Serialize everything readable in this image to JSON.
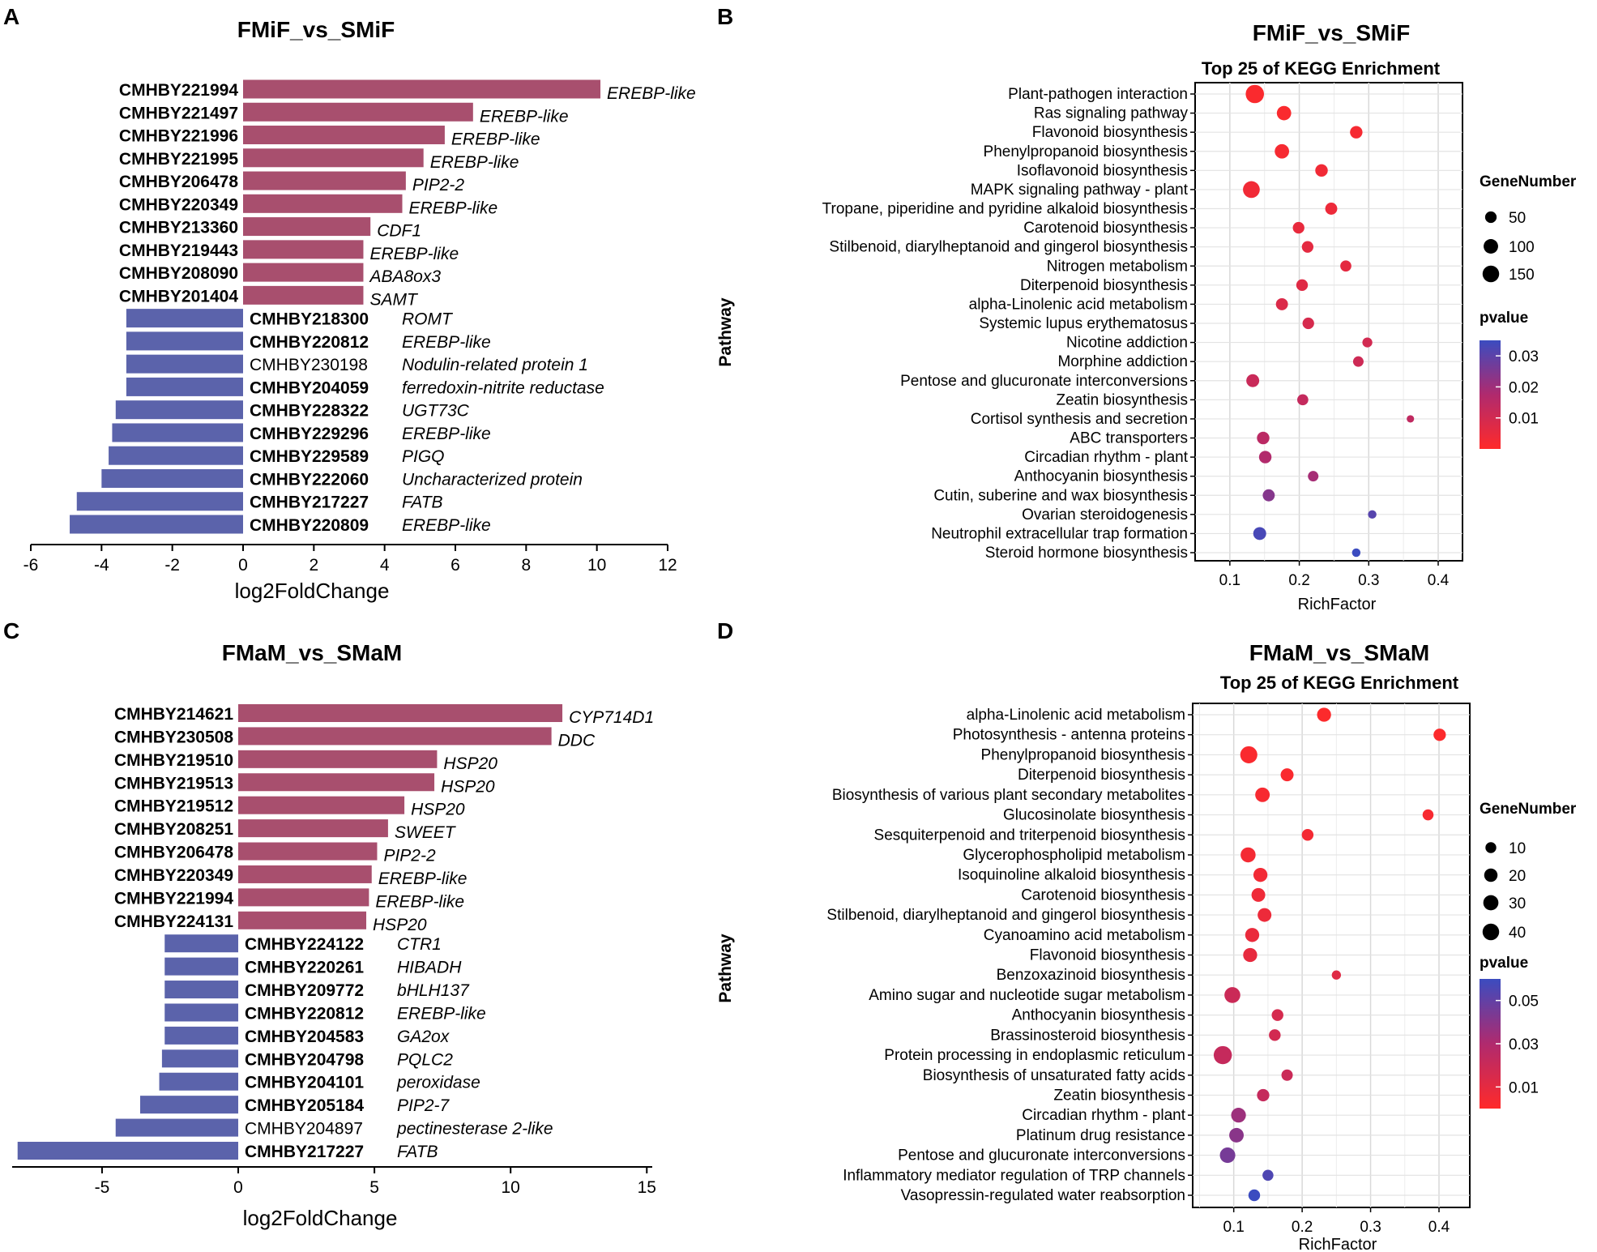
{
  "panels": [
    {
      "letter": "A",
      "title": "FMiF_vs_SMiF",
      "chart_data": {
        "type": "bar",
        "orientation": "horizontal",
        "title": "FMiF_vs_SMiF",
        "xlabel": "log2FoldChange",
        "xlim": [
          -6,
          12
        ],
        "xticks": [
          -6,
          -4,
          -2,
          0,
          2,
          4,
          6,
          8,
          10,
          12
        ],
        "colors": {
          "up": "#a84f6e",
          "down": "#5b63ab"
        },
        "bars": [
          {
            "gene": "CMHBY221994",
            "annotation": "EREBP-like",
            "value": 10.1
          },
          {
            "gene": "CMHBY221497",
            "annotation": "EREBP-like",
            "value": 6.5
          },
          {
            "gene": "CMHBY221996",
            "annotation": "EREBP-like",
            "value": 5.7
          },
          {
            "gene": "CMHBY221995",
            "annotation": "EREBP-like",
            "value": 5.1
          },
          {
            "gene": "CMHBY206478",
            "annotation": "PIP2-2",
            "value": 4.6
          },
          {
            "gene": "CMHBY220349",
            "annotation": "EREBP-like",
            "value": 4.5
          },
          {
            "gene": "CMHBY213360",
            "annotation": "CDF1",
            "value": 3.6
          },
          {
            "gene": "CMHBY219443",
            "annotation": "EREBP-like",
            "value": 3.4
          },
          {
            "gene": "CMHBY208090",
            "annotation": "ABA8ox3",
            "value": 3.4
          },
          {
            "gene": "CMHBY201404",
            "annotation": "SAMT",
            "value": 3.4
          },
          {
            "gene": "CMHBY218300",
            "annotation": "ROMT",
            "value": -3.3
          },
          {
            "gene": "CMHBY220812",
            "annotation": "EREBP-like",
            "value": -3.3
          },
          {
            "gene": "CMHBY230198",
            "annotation": "Nodulin-related protein 1",
            "value": -3.3,
            "plain": true
          },
          {
            "gene": "CMHBY204059",
            "annotation": "ferredoxin-nitrite reductase",
            "value": -3.3
          },
          {
            "gene": "CMHBY228322",
            "annotation": "UGT73C",
            "value": -3.6
          },
          {
            "gene": "CMHBY229296",
            "annotation": "EREBP-like",
            "value": -3.7
          },
          {
            "gene": "CMHBY229589",
            "annotation": "PIGQ",
            "value": -3.8
          },
          {
            "gene": "CMHBY222060",
            "annotation": "Uncharacterized protein",
            "value": -4.0
          },
          {
            "gene": "CMHBY217227",
            "annotation": "FATB",
            "value": -4.7
          },
          {
            "gene": "CMHBY220809",
            "annotation": "EREBP-like",
            "value": -4.9
          }
        ]
      }
    },
    {
      "letter": "B",
      "title": "FMiF_vs_SMiF",
      "chart_data": {
        "type": "scatter",
        "title": "FMiF_vs_SMiF",
        "subtitle": "Top 25 of KEGG Enrichment",
        "xlabel": "RichFactor",
        "ylabel": "Pathway",
        "xlim": [
          0.05,
          0.435
        ],
        "xticks": [
          0.1,
          0.2,
          0.3,
          0.4
        ],
        "size_legend": {
          "title": "GeneNumber",
          "values": [
            50,
            100,
            150
          ]
        },
        "color_legend": {
          "title": "pvalue",
          "ticks": [
            0.03,
            0.02,
            0.01
          ],
          "range": [
            0,
            0.035
          ],
          "low_color": "#ff2a2a",
          "high_color": "#3b4cc0"
        },
        "points": [
          {
            "pathway": "Plant-pathogen interaction",
            "rich": 0.136,
            "gene": 160,
            "p": 0.001
          },
          {
            "pathway": "Ras signaling pathway",
            "rich": 0.178,
            "gene": 90,
            "p": 0.001
          },
          {
            "pathway": "Flavonoid biosynthesis",
            "rich": 0.282,
            "gene": 65,
            "p": 0.002
          },
          {
            "pathway": "Phenylpropanoid biosynthesis",
            "rich": 0.175,
            "gene": 90,
            "p": 0.002
          },
          {
            "pathway": "Isoflavonoid biosynthesis",
            "rich": 0.232,
            "gene": 65,
            "p": 0.003
          },
          {
            "pathway": "MAPK signaling pathway - plant",
            "rich": 0.131,
            "gene": 130,
            "p": 0.003
          },
          {
            "pathway": "Tropane, piperidine and pyridine alkaloid biosynthesis",
            "rich": 0.246,
            "gene": 60,
            "p": 0.004
          },
          {
            "pathway": "Carotenoid biosynthesis",
            "rich": 0.199,
            "gene": 55,
            "p": 0.005
          },
          {
            "pathway": "Stilbenoid, diarylheptanoid and gingerol biosynthesis",
            "rich": 0.212,
            "gene": 55,
            "p": 0.006
          },
          {
            "pathway": "Nitrogen metabolism",
            "rich": 0.267,
            "gene": 50,
            "p": 0.006
          },
          {
            "pathway": "Diterpenoid biosynthesis",
            "rich": 0.204,
            "gene": 55,
            "p": 0.007
          },
          {
            "pathway": "alpha-Linolenic acid metabolism",
            "rich": 0.175,
            "gene": 60,
            "p": 0.008
          },
          {
            "pathway": "Systemic lupus erythematosus",
            "rich": 0.213,
            "gene": 55,
            "p": 0.009
          },
          {
            "pathway": "Nicotine addiction",
            "rich": 0.298,
            "gene": 40,
            "p": 0.01
          },
          {
            "pathway": "Morphine addiction",
            "rich": 0.285,
            "gene": 45,
            "p": 0.011
          },
          {
            "pathway": "Pentose and glucuronate interconversions",
            "rich": 0.133,
            "gene": 70,
            "p": 0.012
          },
          {
            "pathway": "Zeatin biosynthesis",
            "rich": 0.205,
            "gene": 50,
            "p": 0.013
          },
          {
            "pathway": "Cortisol synthesis and secretion",
            "rich": 0.36,
            "gene": 25,
            "p": 0.014
          },
          {
            "pathway": "ABC transporters",
            "rich": 0.148,
            "gene": 65,
            "p": 0.015
          },
          {
            "pathway": "Circadian rhythm - plant",
            "rich": 0.151,
            "gene": 65,
            "p": 0.017
          },
          {
            "pathway": "Anthocyanin biosynthesis",
            "rich": 0.22,
            "gene": 45,
            "p": 0.019
          },
          {
            "pathway": "Cutin, suberine and wax biosynthesis",
            "rich": 0.156,
            "gene": 60,
            "p": 0.024
          },
          {
            "pathway": "Ovarian steroidogenesis",
            "rich": 0.305,
            "gene": 30,
            "p": 0.031
          },
          {
            "pathway": "Neutrophil extracellular trap formation",
            "rich": 0.143,
            "gene": 70,
            "p": 0.033
          },
          {
            "pathway": "Steroid hormone biosynthesis",
            "rich": 0.282,
            "gene": 30,
            "p": 0.035
          }
        ]
      }
    },
    {
      "letter": "C",
      "title": "FMaM_vs_SMaM",
      "chart_data": {
        "type": "bar",
        "orientation": "horizontal",
        "title": "FMaM_vs_SMaM",
        "xlabel": "log2FoldChange",
        "xlim": [
          -8.3,
          15.2
        ],
        "xticks": [
          -5,
          0,
          5,
          10,
          15
        ],
        "colors": {
          "up": "#a84f6e",
          "down": "#5b63ab"
        },
        "bars": [
          {
            "gene": "CMHBY214621",
            "annotation": "CYP714D1",
            "value": 11.9
          },
          {
            "gene": "CMHBY230508",
            "annotation": "DDC",
            "value": 11.5
          },
          {
            "gene": "CMHBY219510",
            "annotation": "HSP20",
            "value": 7.3
          },
          {
            "gene": "CMHBY219513",
            "annotation": "HSP20",
            "value": 7.2
          },
          {
            "gene": "CMHBY219512",
            "annotation": "HSP20",
            "value": 6.1
          },
          {
            "gene": "CMHBY208251",
            "annotation": "SWEET",
            "value": 5.5
          },
          {
            "gene": "CMHBY206478",
            "annotation": "PIP2-2",
            "value": 5.1
          },
          {
            "gene": "CMHBY220349",
            "annotation": "EREBP-like",
            "value": 4.9
          },
          {
            "gene": "CMHBY221994",
            "annotation": "EREBP-like",
            "value": 4.8
          },
          {
            "gene": "CMHBY224131",
            "annotation": "HSP20",
            "value": 4.7
          },
          {
            "gene": "CMHBY224122",
            "annotation": "CTR1",
            "value": -2.7
          },
          {
            "gene": "CMHBY220261",
            "annotation": "HIBADH",
            "value": -2.7
          },
          {
            "gene": "CMHBY209772",
            "annotation": "bHLH137",
            "value": -2.7
          },
          {
            "gene": "CMHBY220812",
            "annotation": "EREBP-like",
            "value": -2.7
          },
          {
            "gene": "CMHBY204583",
            "annotation": "GA2ox",
            "value": -2.7
          },
          {
            "gene": "CMHBY204798",
            "annotation": "PQLC2",
            "value": -2.8
          },
          {
            "gene": "CMHBY204101",
            "annotation": "peroxidase",
            "value": -2.9
          },
          {
            "gene": "CMHBY205184",
            "annotation": "PIP2-7",
            "value": -3.6
          },
          {
            "gene": "CMHBY204897",
            "annotation": "pectinesterase 2-like",
            "value": -4.5,
            "plain": true
          },
          {
            "gene": "CMHBY217227",
            "annotation": "FATB",
            "value": -8.1
          }
        ]
      }
    },
    {
      "letter": "D",
      "title": "FMaM_vs_SMaM",
      "chart_data": {
        "type": "scatter",
        "title": "FMaM_vs_SMaM",
        "subtitle": "Top 25 of KEGG Enrichment",
        "xlabel": "RichFactor",
        "ylabel": "Pathway",
        "xlim": [
          0.04,
          0.445
        ],
        "xticks": [
          0.1,
          0.2,
          0.3,
          0.4
        ],
        "size_legend": {
          "title": "GeneNumber",
          "values": [
            10,
            20,
            30,
            40
          ]
        },
        "color_legend": {
          "title": "pvalue",
          "ticks": [
            0.05,
            0.03,
            0.01
          ],
          "range": [
            0,
            0.06
          ],
          "low_color": "#ff2a2a",
          "high_color": "#3b4cc0"
        },
        "points": [
          {
            "pathway": "alpha-Linolenic acid metabolism",
            "rich": 0.232,
            "gene": 22,
            "p": 0.001
          },
          {
            "pathway": "Photosynthesis - antenna proteins",
            "rich": 0.401,
            "gene": 16,
            "p": 0.001
          },
          {
            "pathway": "Phenylpropanoid biosynthesis",
            "rich": 0.122,
            "gene": 36,
            "p": 0.002
          },
          {
            "pathway": "Diterpenoid biosynthesis",
            "rich": 0.178,
            "gene": 18,
            "p": 0.002
          },
          {
            "pathway": "Biosynthesis of various plant secondary metabolites",
            "rich": 0.142,
            "gene": 24,
            "p": 0.003
          },
          {
            "pathway": "Glucosinolate biosynthesis",
            "rich": 0.384,
            "gene": 12,
            "p": 0.003
          },
          {
            "pathway": "Sesquiterpenoid and triterpenoid biosynthesis",
            "rich": 0.208,
            "gene": 14,
            "p": 0.004
          },
          {
            "pathway": "Glycerophospholipid metabolism",
            "rich": 0.121,
            "gene": 26,
            "p": 0.004
          },
          {
            "pathway": "Isoquinoline alkaloid biosynthesis",
            "rich": 0.139,
            "gene": 22,
            "p": 0.005
          },
          {
            "pathway": "Carotenoid biosynthesis",
            "rich": 0.136,
            "gene": 21,
            "p": 0.006
          },
          {
            "pathway": "Stilbenoid, diarylheptanoid and gingerol biosynthesis",
            "rich": 0.145,
            "gene": 21,
            "p": 0.007
          },
          {
            "pathway": "Cyanoamino acid metabolism",
            "rich": 0.127,
            "gene": 22,
            "p": 0.008
          },
          {
            "pathway": "Flavonoid biosynthesis",
            "rich": 0.124,
            "gene": 22,
            "p": 0.009
          },
          {
            "pathway": "Benzoxazinoid biosynthesis",
            "rich": 0.25,
            "gene": 8,
            "p": 0.012
          },
          {
            "pathway": "Amino sugar and nucleotide sugar metabolism",
            "rich": 0.098,
            "gene": 30,
            "p": 0.02
          },
          {
            "pathway": "Anthocyanin biosynthesis",
            "rich": 0.164,
            "gene": 14,
            "p": 0.016
          },
          {
            "pathway": "Brassinosteroid biosynthesis",
            "rich": 0.16,
            "gene": 14,
            "p": 0.017
          },
          {
            "pathway": "Protein processing in endoplasmic reticulum",
            "rich": 0.084,
            "gene": 42,
            "p": 0.022
          },
          {
            "pathway": "Biosynthesis of unsaturated fatty acids",
            "rich": 0.178,
            "gene": 13,
            "p": 0.02
          },
          {
            "pathway": "Zeatin biosynthesis",
            "rich": 0.143,
            "gene": 16,
            "p": 0.022
          },
          {
            "pathway": "Circadian rhythm - plant",
            "rich": 0.107,
            "gene": 25,
            "p": 0.035
          },
          {
            "pathway": "Platinum drug resistance",
            "rich": 0.104,
            "gene": 24,
            "p": 0.04
          },
          {
            "pathway": "Pentose and glucuronate interconversions",
            "rich": 0.091,
            "gene": 28,
            "p": 0.045
          },
          {
            "pathway": "Inflammatory mediator regulation of TRP channels",
            "rich": 0.15,
            "gene": 12,
            "p": 0.055
          },
          {
            "pathway": "Vasopressin-regulated water reabsorption",
            "rich": 0.13,
            "gene": 14,
            "p": 0.06
          }
        ]
      }
    }
  ]
}
